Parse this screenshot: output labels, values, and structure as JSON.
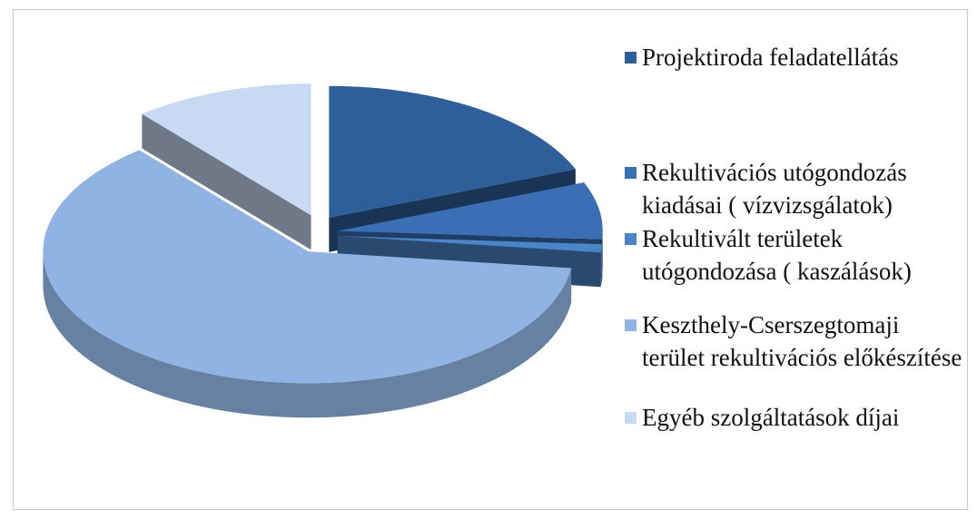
{
  "chart_data": {
    "type": "pie",
    "categories": [
      "Projektiroda feladatellátás",
      "Rekultivációs utógondozás kiadásai ( vízvizsgálatok)",
      "Rekultivált területek utógondozása ( kaszálások)",
      "Keszthely-Cserszegtomaji terület rekultivációs előkészítése",
      "Egyéb szolgáltatások díjai"
    ],
    "values": [
      19,
      7,
      1,
      62,
      11
    ],
    "colors": [
      "#2f5f9a",
      "#3a6fb5",
      "#4a85c9",
      "#8fb3e3",
      "#c8daf3"
    ],
    "legend": "right"
  }
}
